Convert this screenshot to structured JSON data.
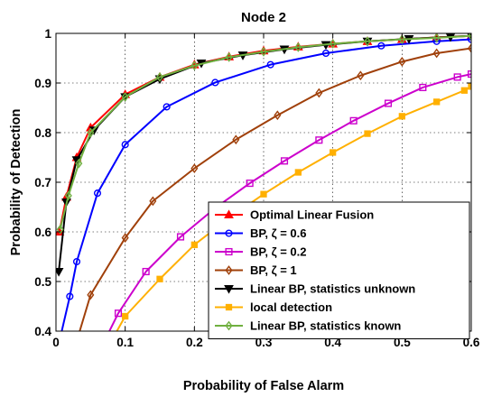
{
  "chart_data": {
    "type": "line",
    "title": "Node 2",
    "xlabel": "Probability of False Alarm",
    "ylabel": "Probability of Detection",
    "xlim": [
      0,
      0.6
    ],
    "ylim": [
      0.4,
      1
    ],
    "xticks": [
      "0",
      "0.1",
      "0.2",
      "0.3",
      "0.4",
      "0.5",
      "0.6"
    ],
    "yticks": [
      "0.4",
      "0.5",
      "0.6",
      "0.7",
      "0.8",
      "0.9",
      "1"
    ],
    "grid": true,
    "legend_position": "bottom-right",
    "series": [
      {
        "name": "Optimal Linear Fusion",
        "color": "#ff0000",
        "marker": "triangle-up",
        "x": [
          0.005,
          0.015,
          0.03,
          0.05,
          0.1,
          0.15,
          0.2,
          0.25,
          0.3,
          0.35,
          0.4,
          0.45,
          0.5,
          0.55,
          0.6
        ],
        "y": [
          0.6,
          0.67,
          0.75,
          0.81,
          0.877,
          0.912,
          0.937,
          0.953,
          0.965,
          0.973,
          0.979,
          0.984,
          0.988,
          0.992,
          0.995
        ]
      },
      {
        "name": "BP, ζ = 0.6",
        "color": "#0000ff",
        "marker": "circle",
        "x": [
          0.005,
          0.02,
          0.03,
          0.06,
          0.1,
          0.16,
          0.23,
          0.31,
          0.39,
          0.47,
          0.55,
          0.6
        ],
        "y": [
          0.38,
          0.47,
          0.54,
          0.678,
          0.776,
          0.852,
          0.901,
          0.937,
          0.96,
          0.975,
          0.984,
          0.988
        ]
      },
      {
        "name": "BP, ζ = 0.2",
        "color": "#cc00cc",
        "marker": "square",
        "x": [
          0.07,
          0.09,
          0.13,
          0.18,
          0.23,
          0.28,
          0.33,
          0.38,
          0.43,
          0.48,
          0.53,
          0.58,
          0.6
        ],
        "y": [
          0.38,
          0.436,
          0.52,
          0.59,
          0.648,
          0.698,
          0.743,
          0.785,
          0.824,
          0.859,
          0.891,
          0.912,
          0.918
        ]
      },
      {
        "name": "BP, ζ = 1",
        "color": "#a0400a",
        "marker": "diamond",
        "x": [
          0.03,
          0.05,
          0.1,
          0.14,
          0.2,
          0.26,
          0.32,
          0.38,
          0.44,
          0.5,
          0.55,
          0.6
        ],
        "y": [
          0.38,
          0.473,
          0.588,
          0.662,
          0.728,
          0.786,
          0.835,
          0.88,
          0.915,
          0.943,
          0.96,
          0.97
        ]
      },
      {
        "name": "Linear BP, statistics unknown",
        "color": "#000000",
        "marker": "triangle-down",
        "x": [
          0.004,
          0.015,
          0.03,
          0.055,
          0.1,
          0.15,
          0.21,
          0.27,
          0.33,
          0.39,
          0.45,
          0.51,
          0.57,
          0.6
        ],
        "y": [
          0.52,
          0.66,
          0.745,
          0.805,
          0.872,
          0.908,
          0.94,
          0.956,
          0.968,
          0.977,
          0.984,
          0.989,
          0.993,
          0.995
        ]
      },
      {
        "name": "local detection",
        "color": "#ffb000",
        "marker": "square-filled",
        "x": [
          0.08,
          0.1,
          0.15,
          0.2,
          0.25,
          0.3,
          0.35,
          0.4,
          0.45,
          0.5,
          0.55,
          0.59,
          0.6
        ],
        "y": [
          0.38,
          0.43,
          0.505,
          0.574,
          0.628,
          0.676,
          0.72,
          0.76,
          0.798,
          0.833,
          0.862,
          0.885,
          0.893
        ]
      },
      {
        "name": "Linear BP, statistics known",
        "color": "#70b040",
        "marker": "diamond",
        "x": [
          0.006,
          0.018,
          0.033,
          0.05,
          0.1,
          0.15,
          0.2,
          0.25,
          0.3,
          0.35,
          0.4,
          0.45,
          0.5,
          0.55,
          0.6
        ],
        "y": [
          0.605,
          0.673,
          0.738,
          0.8,
          0.872,
          0.912,
          0.935,
          0.952,
          0.963,
          0.972,
          0.979,
          0.984,
          0.988,
          0.991,
          0.995
        ]
      }
    ]
  }
}
